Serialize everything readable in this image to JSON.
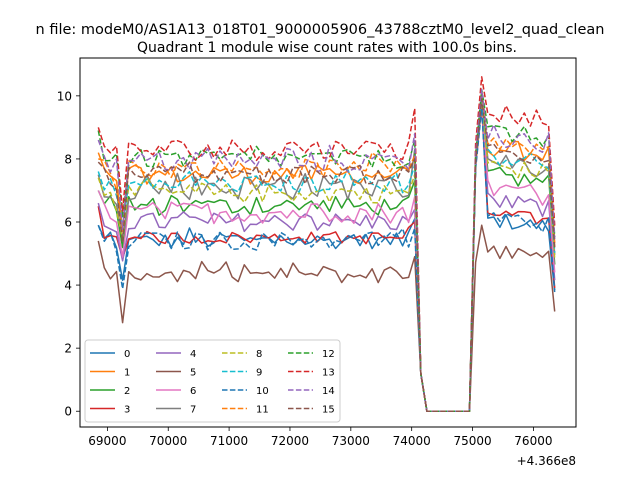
{
  "figure": {
    "suptitle": "n file: modeM0/AS1A13_018T01_9000005906_43788cztM0_level2_quad_clean",
    "title": "Quadrant 1 module wise count rates with 100.0s bins.",
    "x_offset_label": "+4.366e8"
  },
  "chart_data": {
    "type": "line",
    "title": "Quadrant 1 module wise count rates with 100.0s bins.",
    "xlabel": "",
    "ylabel": "",
    "x_offset": "+4.366e8",
    "xlim": [
      68550,
      76700
    ],
    "ylim": [
      -0.5,
      11.2
    ],
    "x_ticks": [
      69000,
      70000,
      71000,
      72000,
      73000,
      74000,
      75000,
      76000
    ],
    "y_ticks": [
      0,
      2,
      4,
      6,
      8,
      10
    ],
    "grid": false,
    "legend": {
      "placement": "lower-left",
      "columns": 4
    },
    "x_range": [
      68850,
      76350
    ],
    "bin_width": 100,
    "gap": {
      "start": 74200,
      "end": 75000
    },
    "series": [
      {
        "name": "0",
        "color": "#1f77b4",
        "dash": "solid",
        "level_before": 5.5,
        "level_after": 6.1,
        "first": 5.9,
        "dip": 4.1,
        "spike_before": 6.1,
        "spike_after": 9.8,
        "noise": 0.25
      },
      {
        "name": "1",
        "color": "#ff7f0e",
        "dash": "solid",
        "level_before": 7.6,
        "level_after": 8.4,
        "first": 8.2,
        "dip": 5.7,
        "spike_before": 8.0,
        "spike_after": 10.0,
        "noise": 0.3
      },
      {
        "name": "2",
        "color": "#2ca02c",
        "dash": "solid",
        "level_before": 6.6,
        "level_after": 7.5,
        "first": 7.0,
        "dip": 5.2,
        "spike_before": 7.3,
        "spike_after": 9.9,
        "noise": 0.3
      },
      {
        "name": "3",
        "color": "#d62728",
        "dash": "solid",
        "level_before": 5.6,
        "level_after": 6.3,
        "first": 6.5,
        "dip": 4.7,
        "spike_before": 6.0,
        "spike_after": 9.7,
        "noise": 0.2
      },
      {
        "name": "4",
        "color": "#9467bd",
        "dash": "solid",
        "level_before": 6.1,
        "level_after": 6.7,
        "first": 6.6,
        "dip": 4.9,
        "spike_before": 6.4,
        "spike_after": 9.7,
        "noise": 0.3
      },
      {
        "name": "5",
        "color": "#8c564b",
        "dash": "solid",
        "level_before": 4.4,
        "level_after": 5.1,
        "first": 5.4,
        "dip": 2.9,
        "spike_before": 4.9,
        "spike_after": 5.9,
        "noise": 0.25
      },
      {
        "name": "6",
        "color": "#e377c2",
        "dash": "solid",
        "level_before": 6.4,
        "level_after": 7.1,
        "first": 7.0,
        "dip": 5.0,
        "spike_before": 6.8,
        "spike_after": 9.8,
        "noise": 0.35
      },
      {
        "name": "7",
        "color": "#7f7f7f",
        "dash": "solid",
        "level_before": 7.2,
        "level_after": 8.0,
        "first": 7.5,
        "dip": 5.4,
        "spike_before": 8.3,
        "spike_after": 9.9,
        "noise": 0.4
      },
      {
        "name": "8",
        "color": "#bcbd22",
        "dash": "dashed",
        "level_before": 7.0,
        "level_after": 7.8,
        "first": 7.4,
        "dip": 5.6,
        "spike_before": 7.5,
        "spike_after": 9.8,
        "noise": 0.3
      },
      {
        "name": "9",
        "color": "#17becf",
        "dash": "dashed",
        "level_before": 7.3,
        "level_after": 8.1,
        "first": 7.6,
        "dip": 5.9,
        "spike_before": 7.8,
        "spike_after": 9.9,
        "noise": 0.3
      },
      {
        "name": "10",
        "color": "#1f77b4",
        "dash": "dashed",
        "level_before": 5.5,
        "level_after": 6.2,
        "first": 5.9,
        "dip": 3.9,
        "spike_before": 5.8,
        "spike_after": 9.6,
        "noise": 0.3
      },
      {
        "name": "11",
        "color": "#ff7f0e",
        "dash": "dashed",
        "level_before": 7.8,
        "level_after": 8.6,
        "first": 8.0,
        "dip": 5.8,
        "spike_before": 8.1,
        "spike_after": 10.1,
        "noise": 0.3
      },
      {
        "name": "12",
        "color": "#2ca02c",
        "dash": "dashed",
        "level_before": 8.1,
        "level_after": 8.9,
        "first": 8.9,
        "dip": 6.0,
        "spike_before": 8.6,
        "spike_after": 10.2,
        "noise": 0.3
      },
      {
        "name": "13",
        "color": "#d62728",
        "dash": "dashed",
        "level_before": 8.4,
        "level_after": 9.5,
        "first": 9.0,
        "dip": 6.2,
        "spike_before": 9.6,
        "spike_after": 10.6,
        "noise": 0.35
      },
      {
        "name": "14",
        "color": "#9467bd",
        "dash": "dashed",
        "level_before": 8.0,
        "level_after": 8.8,
        "first": 8.6,
        "dip": 5.9,
        "spike_before": 8.8,
        "spike_after": 10.2,
        "noise": 0.35
      },
      {
        "name": "15",
        "color": "#8c564b",
        "dash": "dashed",
        "level_before": 7.6,
        "level_after": 8.3,
        "first": 7.9,
        "dip": 5.5,
        "spike_before": 8.0,
        "spike_after": 9.9,
        "noise": 0.3
      }
    ]
  }
}
